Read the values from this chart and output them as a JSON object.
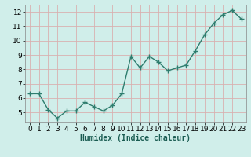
{
  "x": [
    0,
    1,
    2,
    3,
    4,
    5,
    6,
    7,
    8,
    9,
    10,
    11,
    12,
    13,
    14,
    15,
    16,
    17,
    18,
    19,
    20,
    21,
    22,
    23
  ],
  "y": [
    6.3,
    6.3,
    5.2,
    4.6,
    5.1,
    5.1,
    5.7,
    5.4,
    5.1,
    5.5,
    6.3,
    8.9,
    8.1,
    8.9,
    8.5,
    7.9,
    8.1,
    8.3,
    9.3,
    10.4,
    11.2,
    11.8,
    12.1,
    11.5
  ],
  "xlabel": "Humidex (Indice chaleur)",
  "bg_color": "#d0eeea",
  "grid_color": "#d9b0b0",
  "line_color": "#2e7d6e",
  "marker_color": "#2e7d6e",
  "ylim": [
    4.3,
    12.5
  ],
  "xlim": [
    -0.5,
    23.5
  ],
  "yticks": [
    5,
    6,
    7,
    8,
    9,
    10,
    11,
    12
  ],
  "xticks": [
    0,
    1,
    2,
    3,
    4,
    5,
    6,
    7,
    8,
    9,
    10,
    11,
    12,
    13,
    14,
    15,
    16,
    17,
    18,
    19,
    20,
    21,
    22,
    23
  ],
  "xlabel_fontsize": 7,
  "tick_fontsize": 6.5,
  "linewidth": 1.0,
  "markersize": 2.5
}
